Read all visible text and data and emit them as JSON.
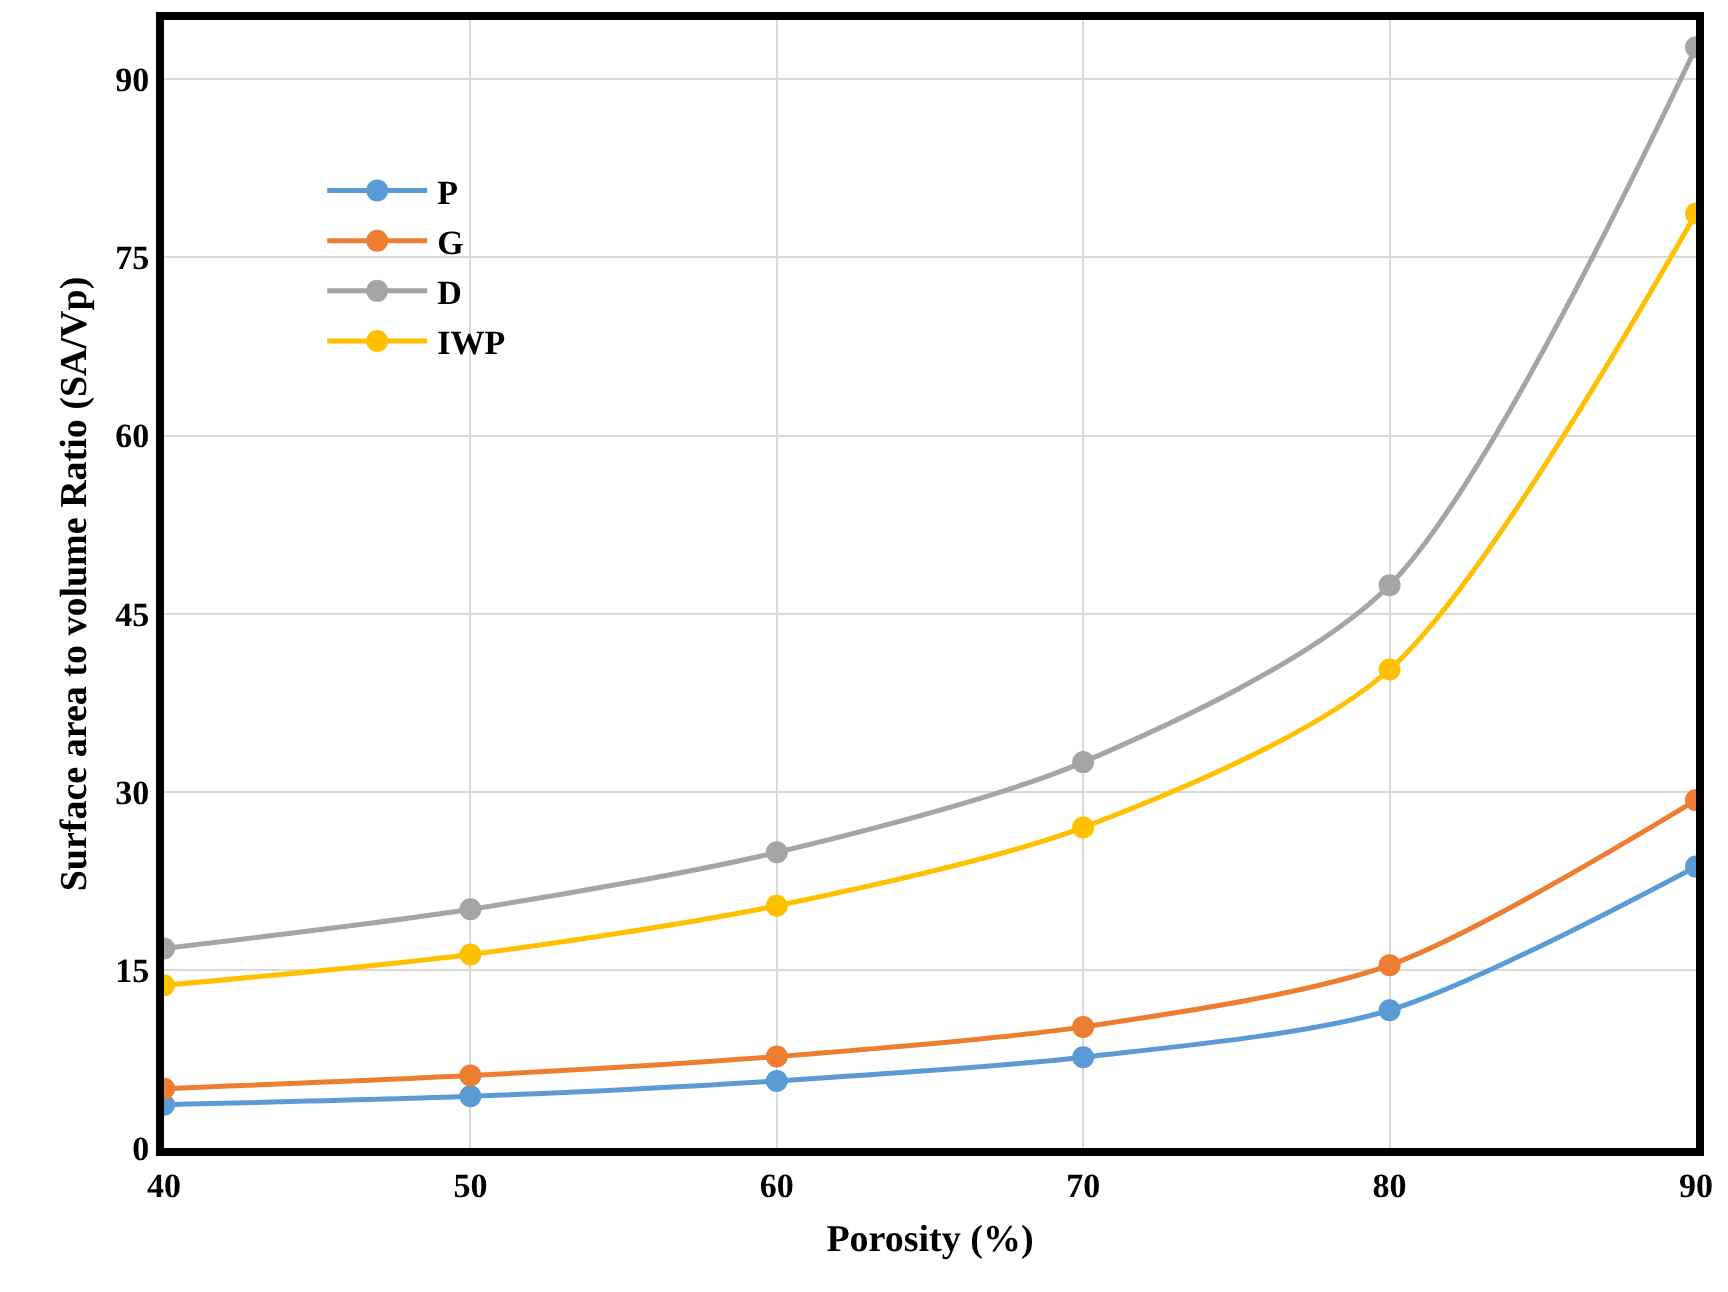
{
  "chart_data": {
    "type": "line",
    "xlabel": "Porosity (%)",
    "ylabel": "Surface area to volume Ratio (SA/Vp)",
    "x": [
      40,
      50,
      60,
      70,
      80,
      90
    ],
    "series": [
      {
        "name": "P",
        "color": "#5b9bd5",
        "values": [
          3.65,
          4.35,
          5.65,
          7.65,
          11.6,
          23.7
        ]
      },
      {
        "name": "G",
        "color": "#ed7d31",
        "values": [
          5.0,
          6.1,
          7.7,
          10.2,
          15.4,
          29.3
        ]
      },
      {
        "name": "D",
        "color": "#a5a5a5",
        "values": [
          16.8,
          20.1,
          24.9,
          32.5,
          47.4,
          92.7
        ]
      },
      {
        "name": "IWP",
        "color": "#ffc000",
        "values": [
          13.7,
          16.3,
          20.4,
          27.0,
          40.3,
          78.7
        ]
      }
    ],
    "xlim": [
      40,
      90
    ],
    "xticks": [
      40,
      50,
      60,
      70,
      80,
      90
    ],
    "ylim": [
      0,
      95
    ],
    "yticks": [
      0,
      15,
      30,
      45,
      60,
      75,
      90
    ],
    "grid": true,
    "legend": "top left",
    "marker": "circle",
    "line_style": "solid"
  }
}
